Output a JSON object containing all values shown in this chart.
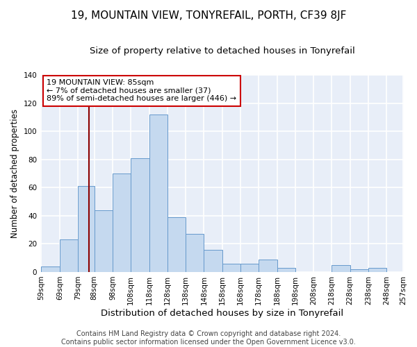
{
  "title": "19, MOUNTAIN VIEW, TONYREFAIL, PORTH, CF39 8JF",
  "subtitle": "Size of property relative to detached houses in Tonyrefail",
  "xlabel": "Distribution of detached houses by size in Tonyrefail",
  "ylabel": "Number of detached properties",
  "footer1": "Contains HM Land Registry data © Crown copyright and database right 2024.",
  "footer2": "Contains public sector information licensed under the Open Government Licence v3.0.",
  "bin_edges": [
    59,
    69,
    79,
    88,
    98,
    108,
    118,
    128,
    138,
    148,
    158,
    168,
    178,
    188,
    198,
    208,
    218,
    228,
    238,
    248,
    257
  ],
  "bin_counts": [
    4,
    23,
    61,
    44,
    70,
    81,
    112,
    39,
    27,
    16,
    6,
    6,
    9,
    3,
    0,
    0,
    5,
    2,
    3,
    0
  ],
  "bar_color": "#c5d9ef",
  "bar_edge_color": "#6699cc",
  "bar_linewidth": 0.7,
  "vline_x": 85,
  "vline_color": "#8b0000",
  "annotation_text": "19 MOUNTAIN VIEW: 85sqm\n← 7% of detached houses are smaller (37)\n89% of semi-detached houses are larger (446) →",
  "annotation_box_color": "white",
  "annotation_box_edge": "#cc0000",
  "ylim": [
    0,
    140
  ],
  "yticks": [
    0,
    20,
    40,
    60,
    80,
    100,
    120,
    140
  ],
  "bg_color": "#e8eef8",
  "grid_color": "white",
  "title_fontsize": 11,
  "subtitle_fontsize": 9.5,
  "xlabel_fontsize": 9.5,
  "ylabel_fontsize": 8.5,
  "tick_label_fontsize": 7.5,
  "annotation_fontsize": 8,
  "footer_fontsize": 7,
  "x_tick_labels": [
    "59sqm",
    "69sqm",
    "79sqm",
    "88sqm",
    "98sqm",
    "108sqm",
    "118sqm",
    "128sqm",
    "138sqm",
    "148sqm",
    "158sqm",
    "168sqm",
    "178sqm",
    "188sqm",
    "198sqm",
    "208sqm",
    "218sqm",
    "228sqm",
    "238sqm",
    "248sqm",
    "257sqm"
  ]
}
